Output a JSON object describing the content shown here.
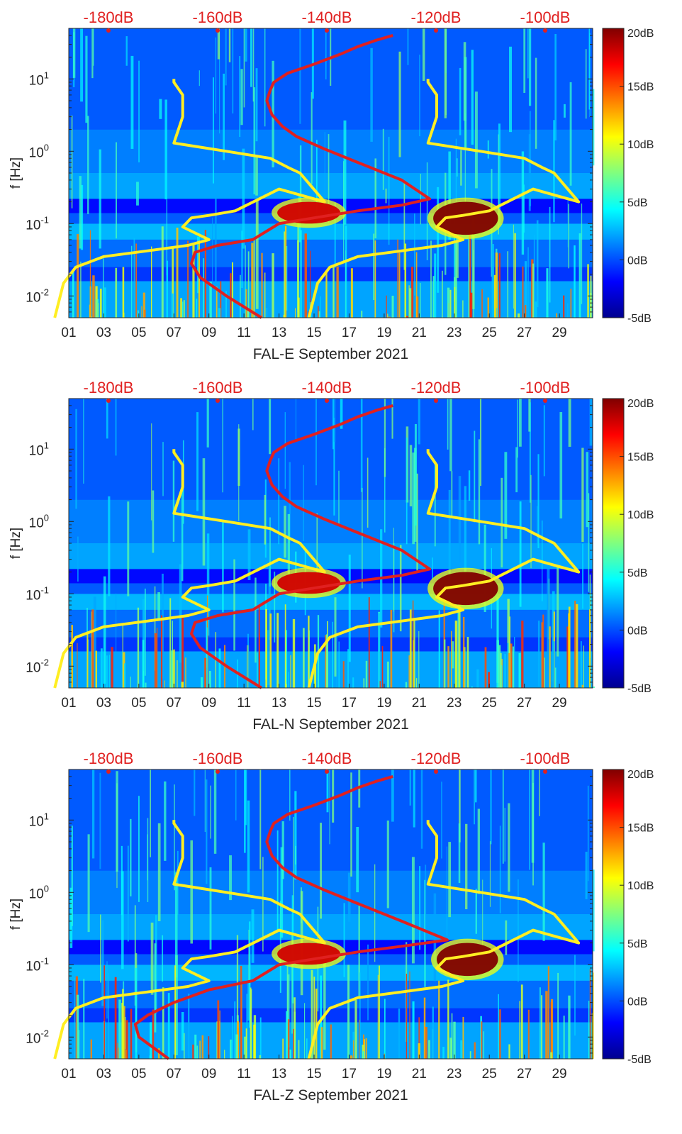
{
  "chart_data": [
    {
      "type": "heatmap",
      "xlabel": "FAL-E September 2021",
      "ylabel": "f [Hz]",
      "x_ticks": [
        "01",
        "03",
        "05",
        "07",
        "09",
        "11",
        "13",
        "15",
        "17",
        "19",
        "21",
        "23",
        "25",
        "27",
        "29"
      ],
      "y_ticks": [
        "10^-2",
        "10^-1",
        "10^0",
        "10^1"
      ],
      "ylim_hz": [
        0.005,
        50
      ],
      "top_ticks": [
        "-180dB",
        "-160dB",
        "-140dB",
        "-120dB",
        "-100dB"
      ],
      "colorbar_ticks": [
        "20dB",
        "15dB",
        "10dB",
        "5dB",
        "0dB",
        "-5dB"
      ],
      "colorbar_range_db": [
        -5,
        20
      ],
      "hot_bands": [
        {
          "day_start": 12.9,
          "day_end": 16.5,
          "f_low": 0.1,
          "f_high": 0.2,
          "db": 18
        },
        {
          "day_start": 21.8,
          "day_end": 25.5,
          "f_low": 0.07,
          "f_high": 0.2,
          "db": 20
        }
      ],
      "series": [
        {
          "name": "yellow reference curves",
          "color": "#ffee22",
          "x_days": [
            0.2,
            0.7,
            1.4,
            3,
            5.5,
            7.8,
            9,
            7.5,
            8,
            9,
            10.5,
            13,
            15.6,
            14.2,
            13.5,
            12.5,
            10,
            7,
            7.5,
            7.5,
            7,
            7
          ],
          "f_hz": [
            0.005,
            0.015,
            0.025,
            0.035,
            0.042,
            0.05,
            0.06,
            0.09,
            0.12,
            0.13,
            0.15,
            0.3,
            0.2,
            0.5,
            0.6,
            0.8,
            1.0,
            1.3,
            3,
            6,
            9,
            10
          ]
        },
        {
          "name": "red reference curve",
          "color": "#e02020",
          "x_days": [
            12,
            10,
            8.5,
            8,
            8.2,
            9.5,
            11.5,
            13,
            15,
            17.5,
            20,
            21.6,
            20,
            17.5,
            15.5,
            14,
            13.2,
            12.6,
            12.3,
            12.5,
            12.7,
            13.5,
            15,
            16.5,
            17.5,
            18.5,
            19.5
          ],
          "f_hz": [
            0.005,
            0.01,
            0.018,
            0.028,
            0.04,
            0.05,
            0.06,
            0.1,
            0.12,
            0.15,
            0.18,
            0.22,
            0.4,
            0.7,
            1.1,
            1.6,
            2.2,
            3.2,
            5,
            7,
            9,
            12,
            16,
            22,
            28,
            34,
            40
          ]
        }
      ]
    },
    {
      "type": "heatmap",
      "xlabel": "FAL-N September 2021",
      "ylabel": "f [Hz]",
      "x_ticks": [
        "01",
        "03",
        "05",
        "07",
        "09",
        "11",
        "13",
        "15",
        "17",
        "19",
        "21",
        "23",
        "25",
        "27",
        "29"
      ],
      "y_ticks": [
        "10^-2",
        "10^-1",
        "10^0",
        "10^1"
      ],
      "ylim_hz": [
        0.005,
        50
      ],
      "top_ticks": [
        "-180dB",
        "-160dB",
        "-140dB",
        "-120dB",
        "-100dB"
      ],
      "colorbar_ticks": [
        "20dB",
        "15dB",
        "10dB",
        "5dB",
        "0dB",
        "-5dB"
      ],
      "colorbar_range_db": [
        -5,
        20
      ],
      "hot_bands": [
        {
          "day_start": 12.9,
          "day_end": 16.5,
          "f_low": 0.1,
          "f_high": 0.2,
          "db": 18
        },
        {
          "day_start": 21.8,
          "day_end": 25.5,
          "f_low": 0.07,
          "f_high": 0.2,
          "db": 20
        }
      ],
      "series": [
        {
          "name": "yellow reference curves",
          "color": "#ffee22",
          "x_days": [
            0.2,
            0.7,
            1.4,
            3,
            5.5,
            7.8,
            9,
            7.5,
            8,
            9,
            10.5,
            13,
            15.6,
            14.2,
            13.5,
            12.5,
            10,
            7,
            7.5,
            7.5,
            7,
            7
          ],
          "f_hz": [
            0.005,
            0.015,
            0.025,
            0.035,
            0.042,
            0.05,
            0.06,
            0.09,
            0.12,
            0.13,
            0.15,
            0.3,
            0.2,
            0.5,
            0.6,
            0.8,
            1.0,
            1.3,
            3,
            6,
            9,
            10
          ]
        },
        {
          "name": "red reference curve",
          "color": "#e02020",
          "x_days": [
            12,
            10,
            8.5,
            8,
            8.2,
            9.5,
            11.5,
            13,
            15,
            17.5,
            20,
            21.6,
            20,
            17.5,
            15.5,
            14,
            13.2,
            12.6,
            12.3,
            12.5,
            12.7,
            13.5,
            15,
            16.5,
            17.5,
            18.5,
            19.5
          ],
          "f_hz": [
            0.005,
            0.01,
            0.018,
            0.028,
            0.04,
            0.05,
            0.06,
            0.1,
            0.12,
            0.15,
            0.18,
            0.22,
            0.4,
            0.7,
            1.1,
            1.6,
            2.2,
            3.2,
            5,
            7,
            9,
            12,
            16,
            22,
            28,
            34,
            40
          ]
        }
      ]
    },
    {
      "type": "heatmap",
      "xlabel": "FAL-Z September 2021",
      "ylabel": "f [Hz]",
      "x_ticks": [
        "01",
        "03",
        "05",
        "07",
        "09",
        "11",
        "13",
        "15",
        "17",
        "19",
        "21",
        "23",
        "25",
        "27",
        "29"
      ],
      "y_ticks": [
        "10^-2",
        "10^-1",
        "10^0",
        "10^1"
      ],
      "ylim_hz": [
        0.005,
        50
      ],
      "top_ticks": [
        "-180dB",
        "-160dB",
        "-140dB",
        "-120dB",
        "-100dB"
      ],
      "colorbar_ticks": [
        "20dB",
        "15dB",
        "10dB",
        "5dB",
        "0dB",
        "-5dB"
      ],
      "colorbar_range_db": [
        -5,
        20
      ],
      "hot_bands": [
        {
          "day_start": 12.9,
          "day_end": 16.5,
          "f_low": 0.1,
          "f_high": 0.2,
          "db": 18
        },
        {
          "day_start": 22.0,
          "day_end": 25.5,
          "f_low": 0.07,
          "f_high": 0.2,
          "db": 20
        }
      ],
      "series": [
        {
          "name": "yellow reference curves",
          "color": "#ffee22",
          "x_days": [
            0.2,
            0.7,
            1.4,
            3,
            5.5,
            7.8,
            9,
            7.5,
            8,
            9,
            10.5,
            13,
            15.6,
            14.2,
            13.5,
            12.5,
            10,
            7,
            7.5,
            7.5,
            7,
            7
          ],
          "f_hz": [
            0.005,
            0.015,
            0.025,
            0.035,
            0.042,
            0.05,
            0.06,
            0.09,
            0.12,
            0.13,
            0.15,
            0.3,
            0.2,
            0.5,
            0.6,
            0.8,
            1.0,
            1.3,
            3,
            6,
            9,
            10
          ]
        },
        {
          "name": "red reference curve",
          "color": "#e02020",
          "x_days": [
            6.7,
            5,
            4.8,
            5.5,
            7,
            9,
            11.5,
            13,
            15,
            17.5,
            20,
            22.6,
            20,
            17.5,
            15.5,
            14,
            13.2,
            12.6,
            12.3,
            12.5,
            12.7,
            13.5,
            15,
            16.5,
            17.5,
            18.5,
            19.5
          ],
          "f_hz": [
            0.005,
            0.01,
            0.015,
            0.02,
            0.03,
            0.045,
            0.06,
            0.1,
            0.12,
            0.15,
            0.18,
            0.22,
            0.4,
            0.7,
            1.1,
            1.6,
            2.2,
            3.2,
            5,
            7,
            9,
            12,
            16,
            22,
            28,
            34,
            40
          ]
        }
      ]
    }
  ]
}
